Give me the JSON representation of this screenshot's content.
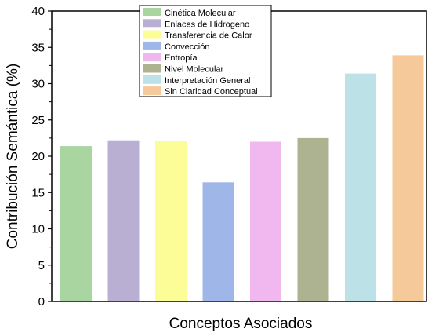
{
  "chart_data": {
    "type": "bar",
    "title": "",
    "xlabel": "Conceptos Asociados",
    "ylabel": "Contribución Semántica (%)",
    "ylim": [
      0,
      40
    ],
    "yticks": [
      0,
      5,
      10,
      15,
      20,
      25,
      30,
      35,
      40
    ],
    "grid": false,
    "legend_position": "top-center",
    "categories": [
      "Cinética Molecular",
      "Enlaces de Hidrogeno",
      "Transferencia de Calor",
      "Convección",
      "Entropía",
      "Nivel Molecular",
      "Interpretación General",
      "Sin Claridad Conceptual"
    ],
    "values": [
      21.4,
      22.2,
      22.1,
      16.4,
      22.0,
      22.5,
      31.4,
      33.9
    ],
    "colors": [
      "#a8d5a0",
      "#b9afd3",
      "#fdfd98",
      "#9fb6e8",
      "#f1b7ef",
      "#adb391",
      "#bce2e8",
      "#f6c99a"
    ]
  }
}
